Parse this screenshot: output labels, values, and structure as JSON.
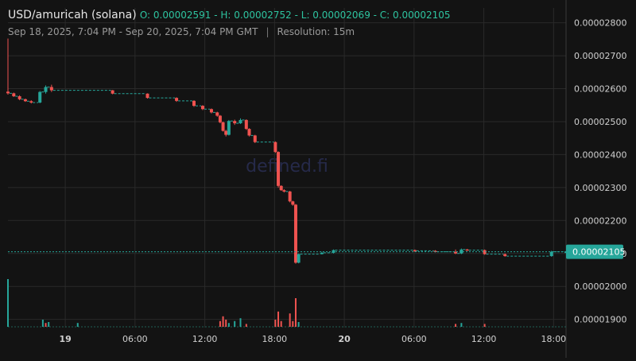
{
  "header": {
    "pair": "USD/amuricah (solana)",
    "ohlc": "O: 0.00002591 - H: 0.00002752 - L: 0.00002069 - C: 0.00002105",
    "range": "Sep 18, 2025, 7:04 PM - Sep 20, 2025, 7:04 PM GMT",
    "separator": "|",
    "resolution": "Resolution: 15m"
  },
  "watermark": "defined.fi",
  "colors": {
    "up": "#26a69a",
    "down": "#ef5350",
    "background": "#131313",
    "grid": "#2a2a2a",
    "price_tag": "#26a69a"
  },
  "chart_data": {
    "type": "candlestick",
    "title": "USD/amuricah (solana)",
    "xlabel": "",
    "ylabel": "",
    "x_ticks": [
      "19",
      "06:00",
      "12:00",
      "18:00",
      "20",
      "06:00",
      "12:00",
      "18:00"
    ],
    "x_tick_hours": [
      4.93,
      10.93,
      16.93,
      22.93,
      28.93,
      34.93,
      40.93,
      46.93
    ],
    "x_range_hours": [
      0,
      48
    ],
    "y_ticks": [
      "0.00002800",
      "0.00002700",
      "0.00002600",
      "0.00002500",
      "0.00002400",
      "0.00002300",
      "0.00002200",
      "0.00002100",
      "0.00002000",
      "0.00001900"
    ],
    "y_tick_values": [
      2.8e-05,
      2.7e-05,
      2.6e-05,
      2.5e-05,
      2.4e-05,
      2.3e-05,
      2.2e-05,
      2.1e-05,
      2e-05,
      1.9e-05
    ],
    "ylim": [
      1.875e-05,
      2.845e-05
    ],
    "last_price_label": "0.00002105",
    "last_price": 2.105e-05,
    "grid": true,
    "candles": [
      [
        0.0,
        2.591e-05,
        2.752e-05,
        2.582e-05,
        2.586e-05
      ],
      [
        0.5,
        2.586e-05,
        2.588e-05,
        2.575e-05,
        2.577e-05
      ],
      [
        1.0,
        2.577e-05,
        2.58e-05,
        2.565e-05,
        2.568e-05
      ],
      [
        1.5,
        2.568e-05,
        2.57e-05,
        2.56e-05,
        2.562e-05
      ],
      [
        2.0,
        2.562e-05,
        2.565e-05,
        2.555e-05,
        2.558e-05
      ],
      [
        2.75,
        2.558e-05,
        2.593e-05,
        2.556e-05,
        2.59e-05
      ],
      [
        3.25,
        2.59e-05,
        2.61e-05,
        2.585e-05,
        2.605e-05
      ],
      [
        3.75,
        2.605e-05,
        2.612e-05,
        2.59e-05,
        2.595e-05
      ],
      [
        9.0,
        2.595e-05,
        2.596e-05,
        2.583e-05,
        2.585e-05
      ],
      [
        12.0,
        2.585e-05,
        2.586e-05,
        2.57e-05,
        2.572e-05
      ],
      [
        14.5,
        2.572e-05,
        2.574e-05,
        2.56e-05,
        2.563e-05
      ],
      [
        16.0,
        2.563e-05,
        2.565e-05,
        2.545e-05,
        2.548e-05
      ],
      [
        16.75,
        2.548e-05,
        2.55e-05,
        2.535e-05,
        2.538e-05
      ],
      [
        17.5,
        2.538e-05,
        2.54e-05,
        2.525e-05,
        2.528e-05
      ],
      [
        18.0,
        2.528e-05,
        2.53e-05,
        2.515e-05,
        2.518e-05
      ],
      [
        18.25,
        2.518e-05,
        2.52e-05,
        2.495e-05,
        2.498e-05
      ],
      [
        18.5,
        2.498e-05,
        2.5e-05,
        2.47e-05,
        2.472e-05
      ],
      [
        18.75,
        2.472e-05,
        2.475e-05,
        2.455e-05,
        2.46e-05
      ],
      [
        19.0,
        2.46e-05,
        2.505e-05,
        2.458e-05,
        2.502e-05
      ],
      [
        19.5,
        2.502e-05,
        2.506e-05,
        2.49e-05,
        2.495e-05
      ],
      [
        20.0,
        2.495e-05,
        2.51e-05,
        2.493e-05,
        2.505e-05
      ],
      [
        20.5,
        2.505e-05,
        2.507e-05,
        2.475e-05,
        2.478e-05
      ],
      [
        20.75,
        2.478e-05,
        2.48e-05,
        2.455e-05,
        2.458e-05
      ],
      [
        21.25,
        2.458e-05,
        2.46e-05,
        2.435e-05,
        2.438e-05
      ],
      [
        23.0,
        2.438e-05,
        2.44e-05,
        2.405e-05,
        2.408e-05
      ],
      [
        23.25,
        2.408e-05,
        2.41e-05,
        2.3e-05,
        2.305e-05
      ],
      [
        23.5,
        2.305e-05,
        2.307e-05,
        2.29e-05,
        2.292e-05
      ],
      [
        23.75,
        2.292e-05,
        2.295e-05,
        2.285e-05,
        2.288e-05
      ],
      [
        24.25,
        2.288e-05,
        2.29e-05,
        2.255e-05,
        2.258e-05
      ],
      [
        24.5,
        2.258e-05,
        2.26e-05,
        2.245e-05,
        2.248e-05
      ],
      [
        24.75,
        2.248e-05,
        2.25e-05,
        2.069e-05,
        2.072e-05
      ],
      [
        25.0,
        2.072e-05,
        2.1e-05,
        2.07e-05,
        2.098e-05
      ],
      [
        27.0,
        2.098e-05,
        2.105e-05,
        2.097e-05,
        2.102e-05
      ],
      [
        28.0,
        2.102e-05,
        2.112e-05,
        2.1e-05,
        2.11e-05
      ],
      [
        35.0,
        2.11e-05,
        2.112e-05,
        2.105e-05,
        2.108e-05
      ],
      [
        36.75,
        2.108e-05,
        2.11e-05,
        2.103e-05,
        2.105e-05
      ],
      [
        38.5,
        2.105e-05,
        2.112e-05,
        2.098e-05,
        2.1e-05
      ],
      [
        39.0,
        2.1e-05,
        2.115e-05,
        2.098e-05,
        2.112e-05
      ],
      [
        39.5,
        2.112e-05,
        2.114e-05,
        2.108e-05,
        2.11e-05
      ],
      [
        41.0,
        2.11e-05,
        2.112e-05,
        2.096e-05,
        2.098e-05
      ],
      [
        42.75,
        2.098e-05,
        2.1e-05,
        2.09e-05,
        2.092e-05
      ],
      [
        46.75,
        2.092e-05,
        2.108e-05,
        2.09e-05,
        2.105e-05
      ],
      [
        48.0,
        2.105e-05,
        2.107e-05,
        2.103e-05,
        2.105e-05
      ]
    ],
    "volume_series": {
      "name": "",
      "max": 1.0,
      "points": [
        [
          0.0,
          1.0,
          "up"
        ],
        [
          3.0,
          0.15,
          "up"
        ],
        [
          3.25,
          0.08,
          "down"
        ],
        [
          3.5,
          0.1,
          "up"
        ],
        [
          6.0,
          0.08,
          "up"
        ],
        [
          18.25,
          0.12,
          "down"
        ],
        [
          18.5,
          0.22,
          "down"
        ],
        [
          18.75,
          0.15,
          "down"
        ],
        [
          19.0,
          0.08,
          "up"
        ],
        [
          19.5,
          0.12,
          "up"
        ],
        [
          20.0,
          0.18,
          "up"
        ],
        [
          20.5,
          0.06,
          "down"
        ],
        [
          23.0,
          0.15,
          "down"
        ],
        [
          23.25,
          0.32,
          "down"
        ],
        [
          23.5,
          0.12,
          "down"
        ],
        [
          24.25,
          0.28,
          "down"
        ],
        [
          24.5,
          0.12,
          "down"
        ],
        [
          24.75,
          0.6,
          "down"
        ],
        [
          25.0,
          0.1,
          "up"
        ],
        [
          38.5,
          0.06,
          "down"
        ],
        [
          39.0,
          0.08,
          "up"
        ],
        [
          41.0,
          0.06,
          "down"
        ]
      ]
    }
  }
}
